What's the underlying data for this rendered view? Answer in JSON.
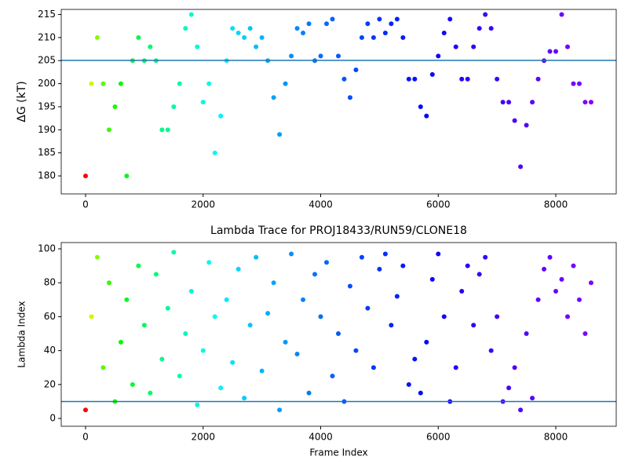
{
  "chart_data": [
    {
      "type": "scatter",
      "ylabel": "ΔG (kT)",
      "colormap": "rainbow",
      "hline": 205.05,
      "hline_color": "#1f77b4",
      "xlim": [
        -414,
        9028
      ],
      "xticks": [
        0,
        2000,
        4000,
        6000,
        8000
      ],
      "ylim": [
        176.1,
        216.1
      ],
      "yticks": [
        180,
        185,
        190,
        195,
        200,
        205,
        210,
        215
      ],
      "x": [
        0,
        100,
        200,
        300,
        400,
        500,
        600,
        700,
        800,
        900,
        1000,
        1100,
        1200,
        1300,
        1400,
        1500,
        1600,
        1700,
        1800,
        1900,
        2000,
        2100,
        2200,
        2300,
        2400,
        2500,
        2600,
        2700,
        2800,
        2900,
        3000,
        3100,
        3200,
        3300,
        3400,
        3500,
        3600,
        3700,
        3800,
        3900,
        4000,
        4100,
        4200,
        4300,
        4400,
        4500,
        4600,
        4700,
        4800,
        4900,
        5000,
        5100,
        5200,
        5300,
        5400,
        5500,
        5600,
        5700,
        5800,
        5900,
        6000,
        6100,
        6200,
        6300,
        6400,
        6500,
        6600,
        6700,
        6800,
        6900,
        7000,
        7100,
        7200,
        7300,
        7400,
        7500,
        7600,
        7700,
        7800,
        7900,
        8000,
        8100,
        8200,
        8300,
        8400,
        8500,
        8600
      ],
      "values": [
        180,
        200,
        210,
        200,
        190,
        195,
        200,
        180,
        205,
        210,
        205,
        208,
        205,
        190,
        190,
        195,
        200,
        212,
        215,
        208,
        196,
        200,
        185,
        193,
        205,
        212,
        211,
        210,
        212,
        208,
        210,
        205,
        197,
        189,
        200,
        206,
        212,
        211,
        213,
        205,
        206,
        213,
        214,
        206,
        201,
        197,
        203,
        210,
        213,
        210,
        214,
        211,
        213,
        214,
        210,
        201,
        201,
        195,
        193,
        202,
        206,
        211,
        214,
        208,
        201,
        201,
        208,
        212,
        215,
        212,
        201,
        196,
        196,
        192,
        182,
        191,
        196,
        201,
        205,
        207,
        207,
        215,
        208,
        200,
        200,
        196,
        196
      ]
    },
    {
      "type": "scatter",
      "title": "Lambda Trace for PROJ18433/RUN59/CLONE18",
      "xlabel": "Frame Index",
      "ylabel": "Lambda Index",
      "colormap": "rainbow",
      "hline": 10,
      "hline_color": "#1f77b4",
      "xlim": [
        -414,
        9028
      ],
      "xticks": [
        0,
        2000,
        4000,
        6000,
        8000
      ],
      "ylim": [
        -4.6,
        103.7
      ],
      "yticks": [
        0,
        20,
        40,
        60,
        80,
        100
      ],
      "x": [
        0,
        100,
        200,
        300,
        400,
        500,
        600,
        700,
        800,
        900,
        1000,
        1100,
        1200,
        1300,
        1400,
        1500,
        1600,
        1700,
        1800,
        1900,
        2000,
        2100,
        2200,
        2300,
        2400,
        2500,
        2600,
        2700,
        2800,
        2900,
        3000,
        3100,
        3200,
        3300,
        3400,
        3500,
        3600,
        3700,
        3800,
        3900,
        4000,
        4100,
        4200,
        4300,
        4400,
        4500,
        4600,
        4700,
        4800,
        4900,
        5000,
        5100,
        5200,
        5300,
        5400,
        5500,
        5600,
        5700,
        5800,
        5900,
        6000,
        6100,
        6200,
        6300,
        6400,
        6500,
        6600,
        6700,
        6800,
        6900,
        7000,
        7100,
        7200,
        7300,
        7400,
        7500,
        7600,
        7700,
        7800,
        7900,
        8000,
        8100,
        8200,
        8300,
        8400,
        8500,
        8600
      ],
      "values": [
        5,
        60,
        95,
        30,
        80,
        10,
        45,
        70,
        20,
        90,
        55,
        15,
        85,
        35,
        65,
        98,
        25,
        50,
        75,
        8,
        40,
        92,
        60,
        18,
        70,
        33,
        88,
        12,
        55,
        95,
        28,
        62,
        80,
        5,
        45,
        97,
        38,
        70,
        15,
        85,
        60,
        92,
        25,
        50,
        10,
        78,
        40,
        95,
        65,
        30,
        88,
        97,
        55,
        72,
        90,
        20,
        35,
        15,
        45,
        82,
        97,
        60,
        10,
        30,
        75,
        90,
        55,
        85,
        95,
        40,
        60,
        10,
        18,
        30,
        5,
        50,
        12,
        70,
        88,
        95,
        75,
        82,
        60,
        90,
        70,
        50,
        80
      ]
    }
  ]
}
